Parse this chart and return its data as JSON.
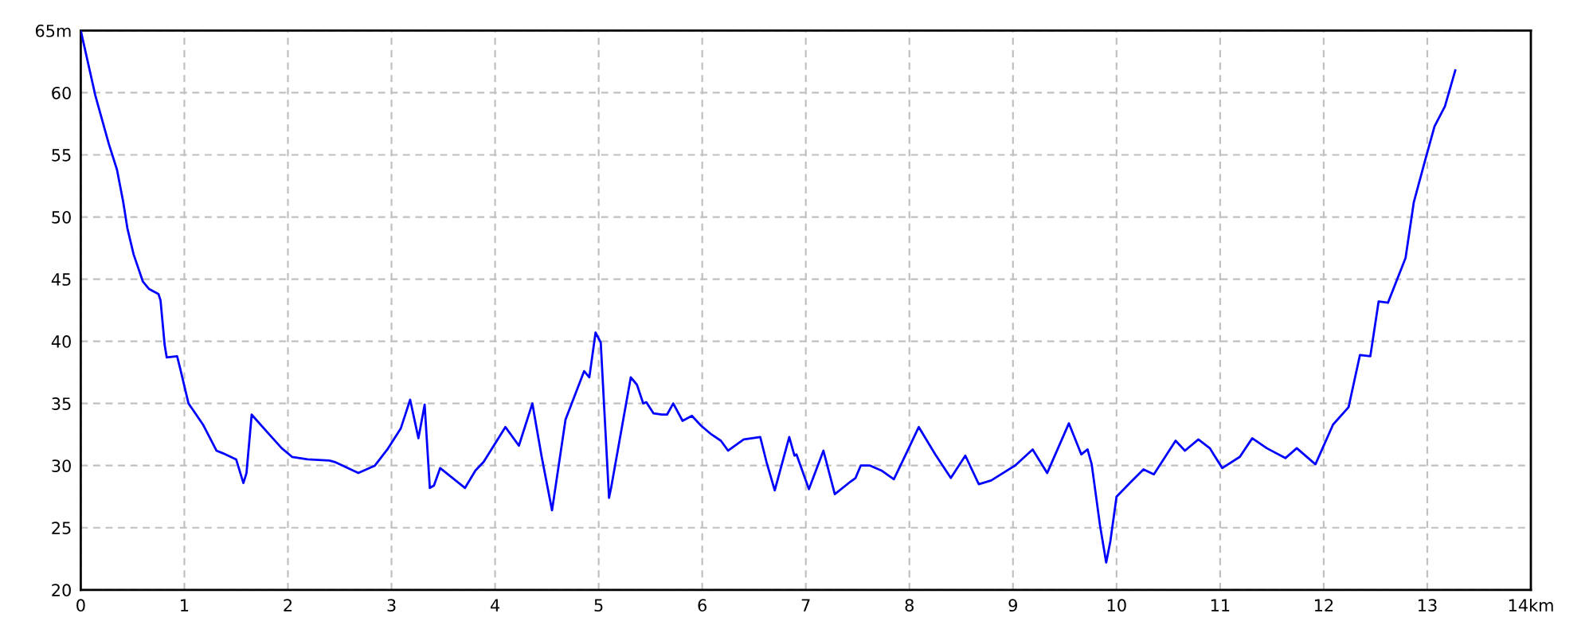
{
  "chart_data": {
    "type": "line",
    "x": [
      0,
      0.14,
      0.27,
      0.35,
      0.41,
      0.45,
      0.51,
      0.6,
      0.66,
      0.75,
      0.77,
      0.81,
      0.83,
      0.93,
      0.96,
      1.04,
      1.09,
      1.18,
      1.31,
      1.37,
      1.5,
      1.57,
      1.6,
      1.65,
      1.81,
      1.94,
      2.04,
      2.19,
      2.4,
      2.45,
      2.68,
      2.84,
      2.96,
      3.09,
      3.18,
      3.26,
      3.32,
      3.37,
      3.41,
      3.47,
      3.53,
      3.71,
      3.81,
      3.89,
      4.1,
      4.23,
      4.36,
      4.45,
      4.55,
      4.68,
      4.86,
      4.91,
      4.97,
      5.02,
      5.1,
      5.12,
      5.31,
      5.37,
      5.43,
      5.46,
      5.53,
      5.61,
      5.66,
      5.72,
      5.81,
      5.9,
      5.99,
      6.09,
      6.18,
      6.25,
      6.4,
      6.56,
      6.62,
      6.7,
      6.84,
      6.89,
      6.91,
      7.03,
      7.17,
      7.28,
      7.43,
      7.48,
      7.53,
      7.62,
      7.73,
      7.85,
      7.96,
      8.09,
      8.25,
      8.4,
      8.54,
      8.67,
      8.79,
      9.02,
      9.19,
      9.33,
      9.54,
      9.66,
      9.72,
      9.76,
      9.84,
      9.9,
      9.94,
      10.0,
      10.14,
      10.26,
      10.36,
      10.57,
      10.66,
      10.79,
      10.9,
      11.02,
      11.19,
      11.31,
      11.45,
      11.63,
      11.74,
      11.92,
      12.09,
      12.24,
      12.35,
      12.45,
      12.53,
      12.62,
      12.79,
      12.87,
      12.99,
      13.07,
      13.17,
      13.27
    ],
    "series": [
      {
        "color": "#0000ff",
        "values": [
          65,
          59.8,
          55.9,
          53.8,
          51.2,
          49.1,
          47.0,
          44.8,
          44.2,
          43.8,
          43.3,
          39.7,
          38.7,
          38.8,
          37.8,
          35.0,
          34.4,
          33.3,
          31.2,
          31.0,
          30.5,
          28.6,
          29.4,
          34.1,
          32.6,
          31.4,
          30.7,
          30.5,
          30.4,
          30.3,
          29.4,
          30.0,
          31.3,
          33.0,
          35.3,
          32.2,
          34.9,
          28.2,
          28.4,
          29.8,
          29.4,
          28.2,
          29.6,
          30.3,
          33.1,
          31.6,
          35.0,
          30.7,
          26.4,
          33.7,
          37.6,
          37.1,
          40.7,
          39.9,
          27.4,
          28.2,
          37.1,
          36.5,
          35.0,
          35.1,
          34.2,
          34.1,
          34.1,
          35.0,
          33.6,
          34.0,
          33.2,
          32.5,
          32.0,
          31.2,
          32.1,
          32.3,
          30.3,
          28.0,
          32.3,
          30.8,
          30.9,
          28.1,
          31.2,
          27.7,
          28.7,
          29.0,
          30.0,
          30.0,
          29.6,
          28.9,
          30.8,
          33.1,
          30.9,
          29.0,
          30.8,
          28.5,
          28.8,
          30.0,
          31.3,
          29.4,
          33.4,
          30.9,
          31.3,
          30.1,
          25.2,
          22.2,
          23.9,
          27.5,
          28.7,
          29.7,
          29.3,
          32.0,
          31.2,
          32.1,
          31.4,
          29.8,
          30.7,
          32.2,
          31.4,
          30.6,
          31.4,
          30.1,
          33.3,
          34.7,
          38.9,
          38.8,
          43.2,
          43.1,
          46.7,
          51.2,
          54.9,
          57.3,
          58.9,
          61.8
        ]
      }
    ],
    "xlim": [
      0,
      14
    ],
    "ylim": [
      20,
      65
    ],
    "xticks": [
      0,
      1,
      2,
      3,
      4,
      5,
      6,
      7,
      8,
      9,
      10,
      11,
      12,
      13,
      {
        "value": 14,
        "label": "14km"
      }
    ],
    "yticks": [
      20,
      25,
      30,
      35,
      40,
      45,
      50,
      55,
      60,
      {
        "value": 65,
        "label": "65m"
      }
    ],
    "grid": true
  }
}
